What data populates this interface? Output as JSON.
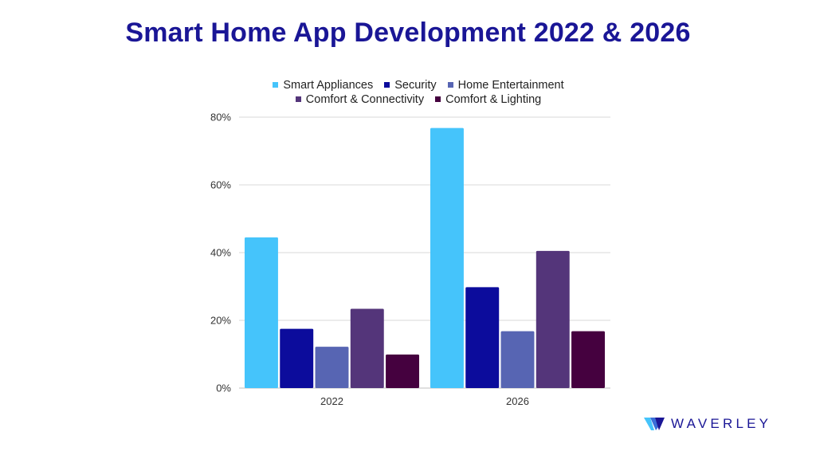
{
  "title": "Smart Home App Development 2022 & 2026",
  "brand": {
    "name": "WAVERLEY",
    "logo_icon": "waverley-logo-icon"
  },
  "chart_data": {
    "type": "bar",
    "title": "Smart Home App Development 2022 & 2026",
    "categories": [
      "2022",
      "2026"
    ],
    "series": [
      {
        "name": "Smart Appliances",
        "color": "#45c4fb",
        "values": [
          44.5,
          76.8
        ]
      },
      {
        "name": "Security",
        "color": "#0c0c9c",
        "values": [
          17.5,
          29.8
        ]
      },
      {
        "name": "Home Entertainment",
        "color": "#5765b3",
        "values": [
          12.2,
          16.8
        ]
      },
      {
        "name": "Comfort & Connectivity",
        "color": "#54357a",
        "values": [
          23.4,
          40.5
        ]
      },
      {
        "name": "Comfort & Lighting",
        "color": "#45013f",
        "values": [
          9.9,
          16.8
        ]
      }
    ],
    "y_ticks": [
      "0%",
      "20%",
      "40%",
      "60%",
      "80%"
    ],
    "ylim": [
      0,
      80
    ],
    "legend_position": "top",
    "grid": true,
    "xlabel": "",
    "ylabel": ""
  }
}
